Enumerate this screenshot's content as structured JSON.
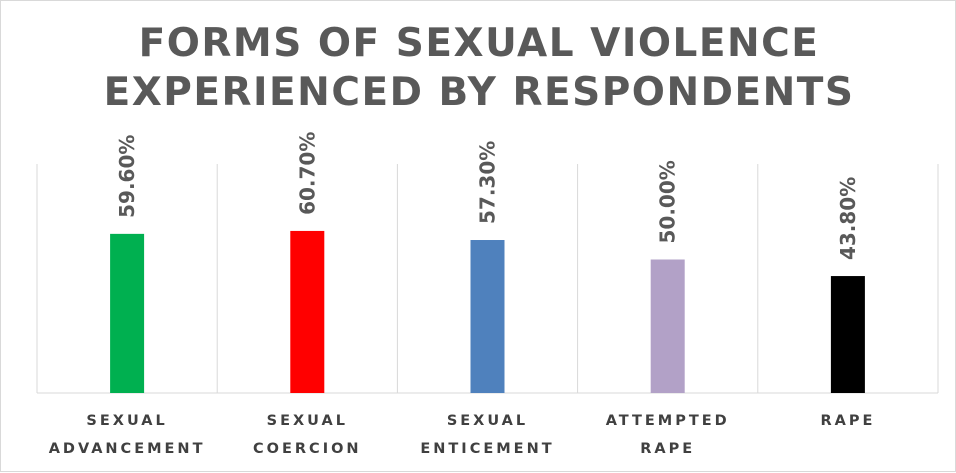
{
  "chart_data": {
    "type": "bar",
    "title_lines": [
      "FORMS OF SEXUAL VIOLENCE",
      "EXPERIENCED BY RESPONDENTS"
    ],
    "categories": [
      [
        "SEXUAL",
        "ADVANCEMENT"
      ],
      [
        "SEXUAL",
        "COERCION"
      ],
      [
        "SEXUAL",
        "ENTICEMENT"
      ],
      [
        "ATTEMPTED",
        "RAPE"
      ],
      [
        "RAPE"
      ]
    ],
    "values": [
      59.6,
      60.7,
      57.3,
      50.0,
      43.8
    ],
    "value_labels": [
      "59.60%",
      "60.70%",
      "57.30%",
      "50.00%",
      "43.80%"
    ],
    "colors": [
      "#00b050",
      "#ff0000",
      "#4f81bd",
      "#b2a1c7",
      "#000000"
    ],
    "ylim": [
      0,
      100
    ],
    "grid": "vertical separators",
    "legend": "none"
  }
}
